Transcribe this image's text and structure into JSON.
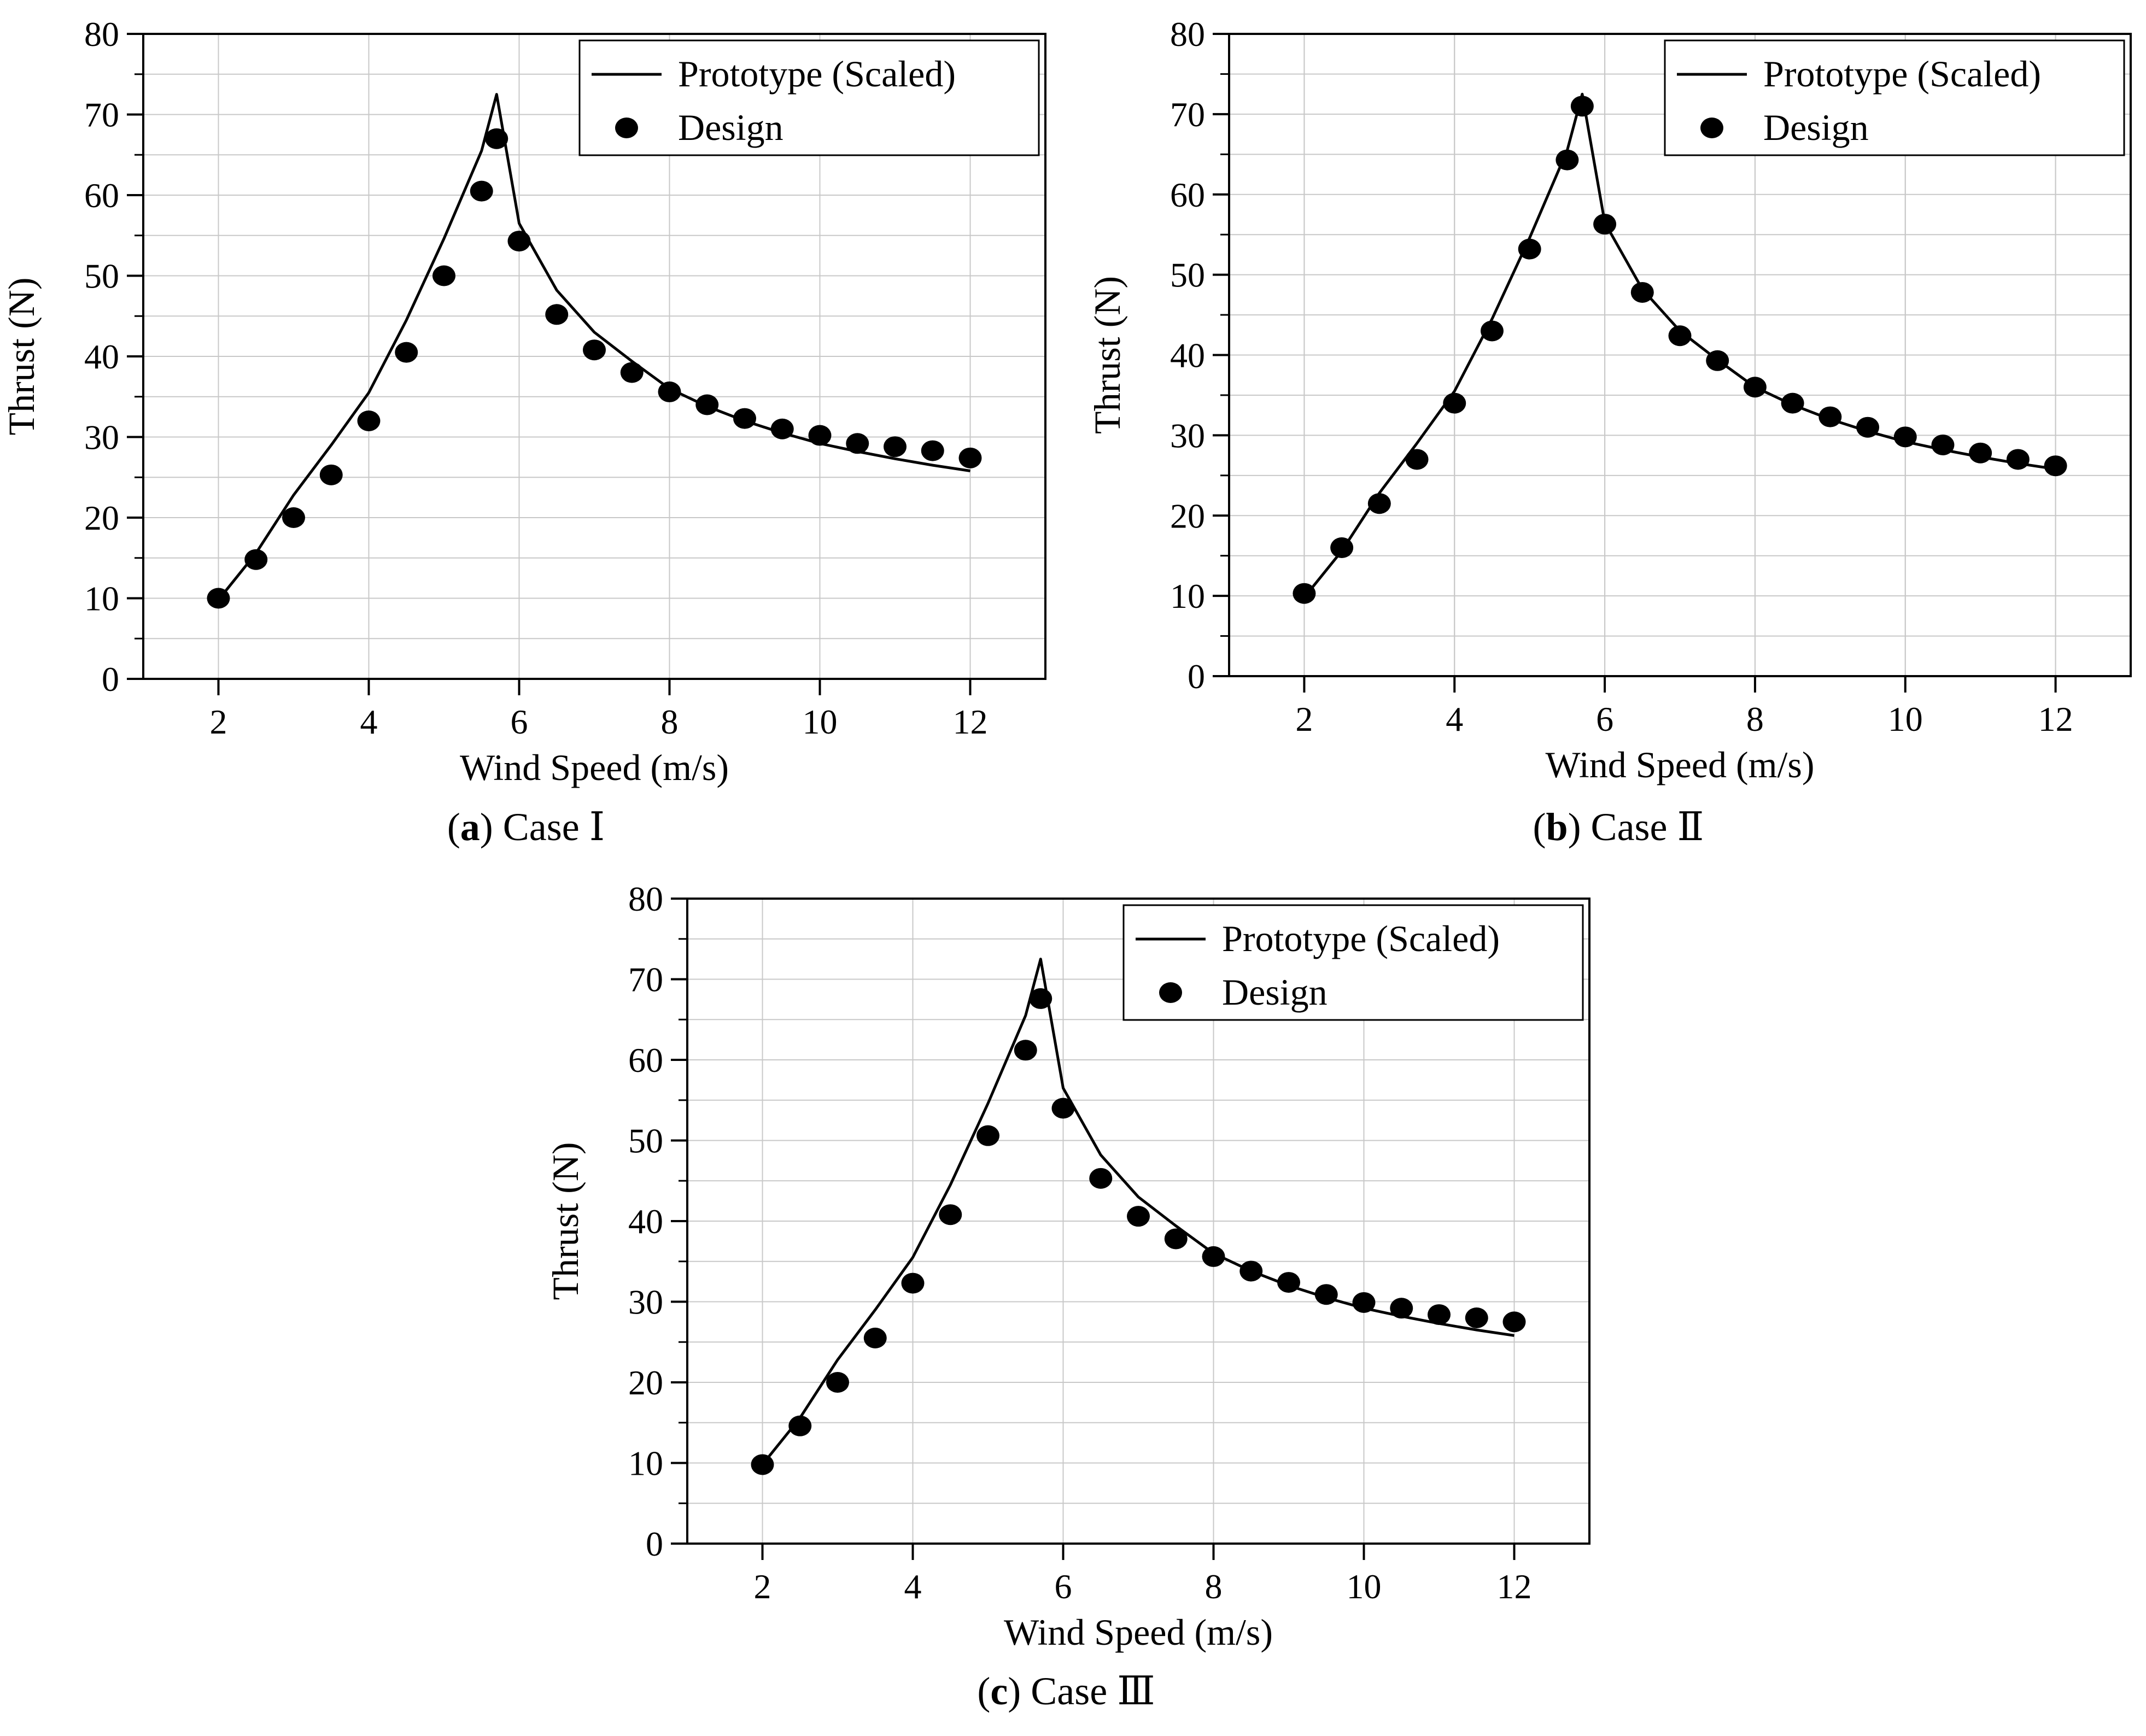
{
  "chart_data": [
    {
      "type": "line",
      "panel_label": "a",
      "caption": "Case Ⅰ",
      "xlabel": "Wind Speed (m/s)",
      "ylabel": "Thrust (N)",
      "xlim": [
        1,
        13
      ],
      "ylim": [
        0,
        80
      ],
      "xticks": [
        2,
        4,
        6,
        8,
        10,
        12
      ],
      "yticks": [
        0,
        10,
        20,
        30,
        40,
        50,
        60,
        70,
        80
      ],
      "grid": true,
      "legend_position": "top-right",
      "series": [
        {
          "name": "Prototype (Scaled)",
          "kind": "line",
          "x": [
            2,
            2.5,
            3,
            3.5,
            4,
            4.5,
            5,
            5.5,
            5.7,
            6,
            6.5,
            7,
            7.5,
            8,
            8.5,
            9,
            9.5,
            10,
            10.5,
            11,
            11.5,
            12
          ],
          "y": [
            9.8,
            15.6,
            22.8,
            29.0,
            35.5,
            44.5,
            54.6,
            65.5,
            72.5,
            56.5,
            48.2,
            43.0,
            39.4,
            36.0,
            33.8,
            32.0,
            30.5,
            29.2,
            28.2,
            27.3,
            26.5,
            25.8
          ]
        },
        {
          "name": "Design",
          "kind": "scatter",
          "x": [
            2,
            2.5,
            3,
            3.5,
            4,
            4.5,
            5,
            5.5,
            5.7,
            6,
            6.5,
            7,
            7.5,
            8,
            8.5,
            9,
            9.5,
            10,
            10.5,
            11,
            11.5,
            12
          ],
          "y": [
            10.0,
            14.8,
            20.0,
            25.3,
            32.0,
            40.5,
            50.0,
            60.5,
            67.0,
            54.3,
            45.2,
            40.8,
            38.0,
            35.6,
            34.0,
            32.3,
            31.0,
            30.2,
            29.2,
            28.8,
            28.3,
            27.4
          ]
        }
      ]
    },
    {
      "type": "line",
      "panel_label": "b",
      "caption": "Case Ⅱ",
      "xlabel": "Wind Speed (m/s)",
      "ylabel": "Thrust (N)",
      "xlim": [
        1,
        13
      ],
      "ylim": [
        0,
        80
      ],
      "xticks": [
        2,
        4,
        6,
        8,
        10,
        12
      ],
      "yticks": [
        0,
        10,
        20,
        30,
        40,
        50,
        60,
        70,
        80
      ],
      "grid": true,
      "legend_position": "top-right",
      "series": [
        {
          "name": "Prototype (Scaled)",
          "kind": "line",
          "x": [
            2,
            2.5,
            3,
            3.5,
            4,
            4.5,
            5,
            5.5,
            5.7,
            6,
            6.5,
            7,
            7.5,
            8,
            8.5,
            9,
            9.5,
            10,
            10.5,
            11,
            11.5,
            12
          ],
          "y": [
            9.8,
            15.6,
            22.8,
            29.0,
            35.5,
            44.5,
            54.6,
            65.5,
            72.5,
            56.5,
            48.2,
            43.0,
            39.4,
            36.0,
            33.8,
            32.0,
            30.5,
            29.2,
            28.2,
            27.3,
            26.5,
            25.8
          ]
        },
        {
          "name": "Design",
          "kind": "scatter",
          "x": [
            2,
            2.5,
            3,
            3.5,
            4,
            4.5,
            5,
            5.5,
            5.7,
            6,
            6.5,
            7,
            7.5,
            8,
            8.5,
            9,
            9.5,
            10,
            10.5,
            11,
            11.5,
            12
          ],
          "y": [
            10.3,
            16.0,
            21.5,
            27.0,
            34.0,
            43.0,
            53.2,
            64.3,
            71.0,
            56.3,
            47.8,
            42.4,
            39.3,
            36.0,
            34.0,
            32.3,
            31.0,
            29.8,
            28.8,
            27.8,
            27.0,
            26.2
          ]
        }
      ]
    },
    {
      "type": "line",
      "panel_label": "c",
      "caption": "Case Ⅲ",
      "xlabel": "Wind Speed (m/s)",
      "ylabel": "Thrust (N)",
      "xlim": [
        1,
        13
      ],
      "ylim": [
        0,
        80
      ],
      "xticks": [
        2,
        4,
        6,
        8,
        10,
        12
      ],
      "yticks": [
        0,
        10,
        20,
        30,
        40,
        50,
        60,
        70,
        80
      ],
      "grid": true,
      "legend_position": "top-right",
      "series": [
        {
          "name": "Prototype (Scaled)",
          "kind": "line",
          "x": [
            2,
            2.5,
            3,
            3.5,
            4,
            4.5,
            5,
            5.5,
            5.7,
            6,
            6.5,
            7,
            7.5,
            8,
            8.5,
            9,
            9.5,
            10,
            10.5,
            11,
            11.5,
            12
          ],
          "y": [
            9.8,
            15.6,
            22.8,
            29.0,
            35.5,
            44.5,
            54.6,
            65.5,
            72.5,
            56.5,
            48.2,
            43.0,
            39.4,
            36.0,
            33.8,
            32.0,
            30.5,
            29.2,
            28.2,
            27.3,
            26.5,
            25.8
          ]
        },
        {
          "name": "Design",
          "kind": "scatter",
          "x": [
            2,
            2.5,
            3,
            3.5,
            4,
            4.5,
            5,
            5.5,
            5.7,
            6,
            6.5,
            7,
            7.5,
            8,
            8.5,
            9,
            9.5,
            10,
            10.5,
            11,
            11.5,
            12
          ],
          "y": [
            9.8,
            14.6,
            20.0,
            25.5,
            32.3,
            40.8,
            50.6,
            61.2,
            67.6,
            54.0,
            45.3,
            40.6,
            37.8,
            35.6,
            33.8,
            32.4,
            30.9,
            29.9,
            29.2,
            28.4,
            28.0,
            27.5
          ]
        }
      ]
    }
  ]
}
